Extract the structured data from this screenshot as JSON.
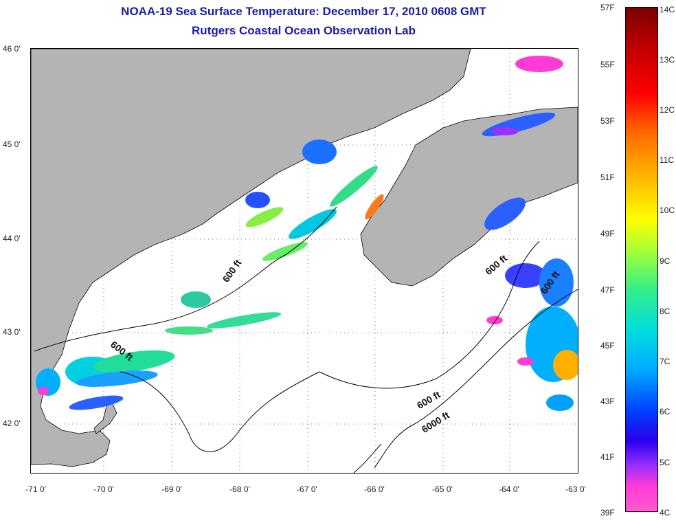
{
  "header": {
    "title": "NOAA-19 Sea Surface Temperature:  December 17, 2010 0608 GMT",
    "subtitle": "Rutgers Coastal Ocean Observation Lab"
  },
  "map": {
    "lat_labels": [
      "46 0'",
      "45 0'",
      "44 0'",
      "43 0'",
      "42 0'"
    ],
    "lon_labels": [
      "-71 0'",
      "-70 0'",
      "-69 0'",
      "-68 0'",
      "-67 0'",
      "-66 0'",
      "-65 0'",
      "-64 0'",
      "-63 0'"
    ],
    "contour_labels": [
      "600 ft",
      "600 ft",
      "600 ft",
      "600 ft",
      "6000 ft"
    ],
    "colors": {
      "land": "#b4b4b4",
      "no_data": "#ffffff",
      "coastline": "#000000"
    }
  },
  "colorbar": {
    "fahrenheit": [
      "57F",
      "55F",
      "53F",
      "51F",
      "49F",
      "47F",
      "45F",
      "43F",
      "41F",
      "39F"
    ],
    "celsius": [
      "14C",
      "13C",
      "12C",
      "11C",
      "10C",
      "9C",
      "8C",
      "7C",
      "6C",
      "5C",
      "4C"
    ]
  }
}
